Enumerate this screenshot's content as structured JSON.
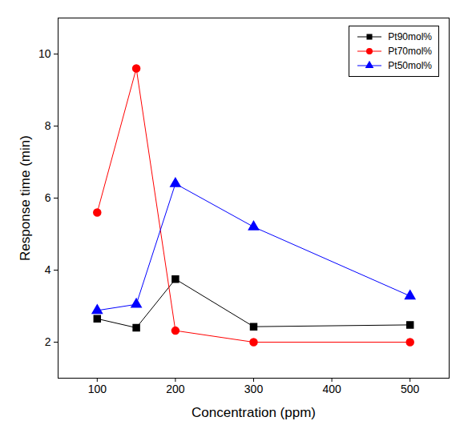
{
  "chart_data": {
    "type": "line",
    "x_label": "Concentration (ppm)",
    "y_label": "Response time (min)",
    "x": [
      100,
      150,
      200,
      300,
      500
    ],
    "series": [
      {
        "name": "Pt90mol%",
        "color": "#000000",
        "marker": "square",
        "values": [
          2.65,
          2.4,
          3.75,
          2.43,
          2.48
        ]
      },
      {
        "name": "Pt70mol%",
        "color": "#ff0000",
        "marker": "circle",
        "values": [
          5.6,
          9.6,
          2.32,
          2.0,
          2.0
        ]
      },
      {
        "name": "Pt50mol%",
        "color": "#0000ff",
        "marker": "triangle",
        "values": [
          2.88,
          3.05,
          6.4,
          5.2,
          3.28
        ]
      }
    ],
    "xlim": [
      50,
      550
    ],
    "ylim": [
      1,
      11
    ],
    "xticks": [
      100,
      200,
      300,
      400,
      500
    ],
    "yticks": [
      2,
      4,
      6,
      8,
      10
    ],
    "grid": false,
    "legend": "top-right"
  }
}
